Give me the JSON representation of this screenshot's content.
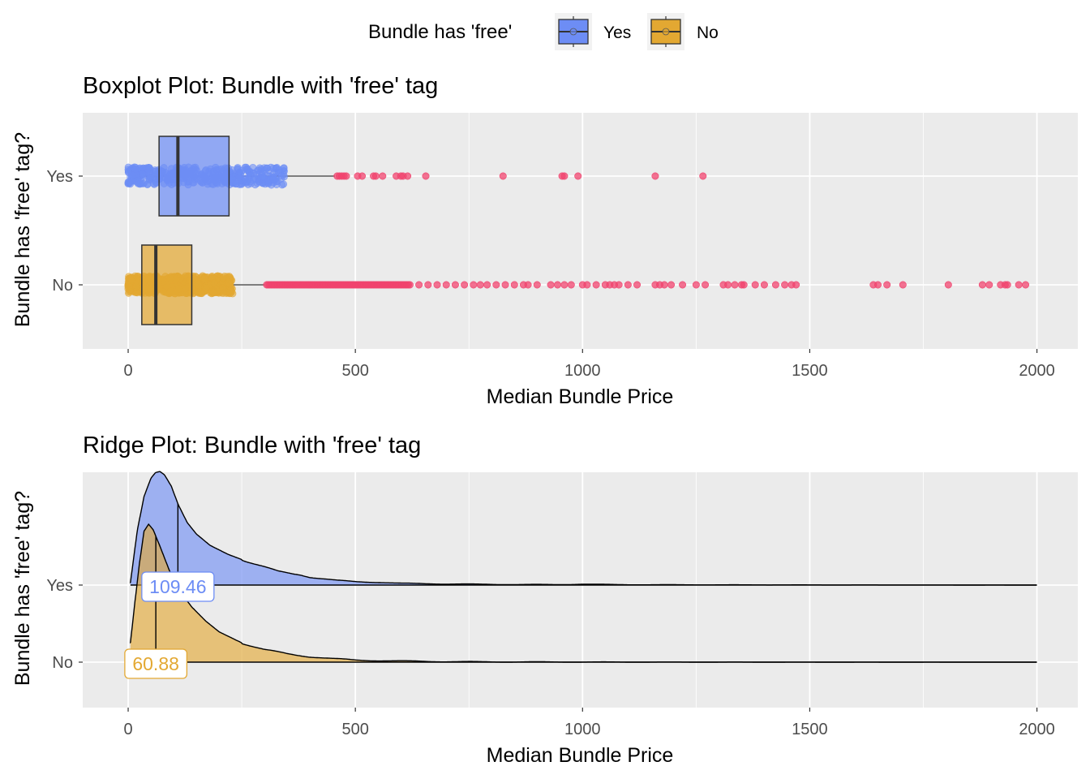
{
  "legend": {
    "title": "Bundle has 'free'",
    "items": [
      {
        "label": "Yes",
        "fill": "#6d8df5",
        "key": "yes"
      },
      {
        "label": "No",
        "fill": "#e3a832",
        "key": "no"
      }
    ]
  },
  "colors": {
    "yes": "#6d8df5",
    "no": "#e3a832",
    "outlier": "#f0436e",
    "panel": "#ebebeb",
    "grid": "#ffffff"
  },
  "chart_data": [
    {
      "type": "boxplot",
      "title": "Boxplot Plot: Bundle with 'free' tag",
      "xlabel": "Median Bundle Price",
      "ylabel": "Bundle has 'free' tag?",
      "xlim": [
        -100,
        2090
      ],
      "xticks": [
        0,
        500,
        1000,
        1500,
        2000
      ],
      "categories": [
        "No",
        "Yes"
      ],
      "grid": true,
      "series": [
        {
          "name": "Yes",
          "min": 5,
          "q1": 68,
          "median": 109.46,
          "q3": 222,
          "max": 455,
          "jitter_range": [
            0,
            345
          ],
          "outliers": [
            460,
            465,
            470,
            475,
            480,
            505,
            515,
            540,
            545,
            560,
            590,
            600,
            605,
            615,
            655,
            825,
            955,
            960,
            990,
            1160,
            1265
          ]
        },
        {
          "name": "No",
          "min": 5,
          "q1": 30,
          "median": 60.88,
          "q3": 140,
          "max": 300,
          "jitter_range": [
            0,
            230
          ],
          "outliers_dense_range": [
            305,
            620
          ],
          "outliers": [
            640,
            660,
            680,
            700,
            720,
            740,
            760,
            775,
            790,
            810,
            830,
            850,
            870,
            880,
            900,
            930,
            945,
            960,
            975,
            1000,
            1010,
            1030,
            1050,
            1060,
            1070,
            1080,
            1100,
            1120,
            1160,
            1170,
            1180,
            1195,
            1220,
            1250,
            1270,
            1310,
            1320,
            1335,
            1350,
            1355,
            1380,
            1400,
            1425,
            1445,
            1460,
            1470,
            1640,
            1650,
            1670,
            1705,
            1805,
            1880,
            1895,
            1920,
            1930,
            1935,
            1960,
            1975
          ]
        }
      ]
    },
    {
      "type": "ridge",
      "title": "Ridge Plot: Bundle with 'free' tag",
      "xlabel": "Median Bundle Price",
      "ylabel": "Bundle has 'free' tag?",
      "xlim": [
        -100,
        2090
      ],
      "xticks": [
        0,
        500,
        1000,
        1500,
        2000
      ],
      "categories": [
        "No",
        "Yes"
      ],
      "grid": true,
      "series": [
        {
          "name": "Yes",
          "median": 109.46,
          "median_label": "109.46",
          "x": [
            5,
            20,
            35,
            50,
            60,
            70,
            80,
            95,
            110,
            130,
            150,
            180,
            220,
            260,
            300,
            330,
            360,
            380,
            400,
            420,
            440,
            460,
            500,
            550,
            600,
            700,
            800,
            950,
            1000,
            1100,
            1300,
            1600,
            2000
          ],
          "density": [
            0.02,
            0.48,
            0.78,
            0.94,
            0.99,
            1.0,
            0.97,
            0.87,
            0.71,
            0.55,
            0.45,
            0.35,
            0.27,
            0.21,
            0.16,
            0.12,
            0.1,
            0.09,
            0.07,
            0.06,
            0.05,
            0.04,
            0.03,
            0.025,
            0.015,
            0.01,
            0.006,
            0.004,
            0.008,
            0.003,
            0.002,
            0.001,
            0.0
          ]
        },
        {
          "name": "No",
          "median": 60.88,
          "median_label": "60.88",
          "x": [
            5,
            15,
            25,
            35,
            45,
            55,
            70,
            90,
            110,
            140,
            170,
            200,
            250,
            300,
            350,
            400,
            450,
            500,
            600,
            700,
            800,
            1000,
            1200,
            1500,
            2000
          ],
          "density": [
            0.14,
            0.44,
            0.72,
            0.95,
            1.0,
            0.96,
            0.84,
            0.67,
            0.53,
            0.4,
            0.3,
            0.22,
            0.14,
            0.09,
            0.06,
            0.04,
            0.025,
            0.015,
            0.008,
            0.004,
            0.002,
            0.001,
            0.0005,
            0.0002,
            0.0
          ]
        }
      ]
    }
  ]
}
